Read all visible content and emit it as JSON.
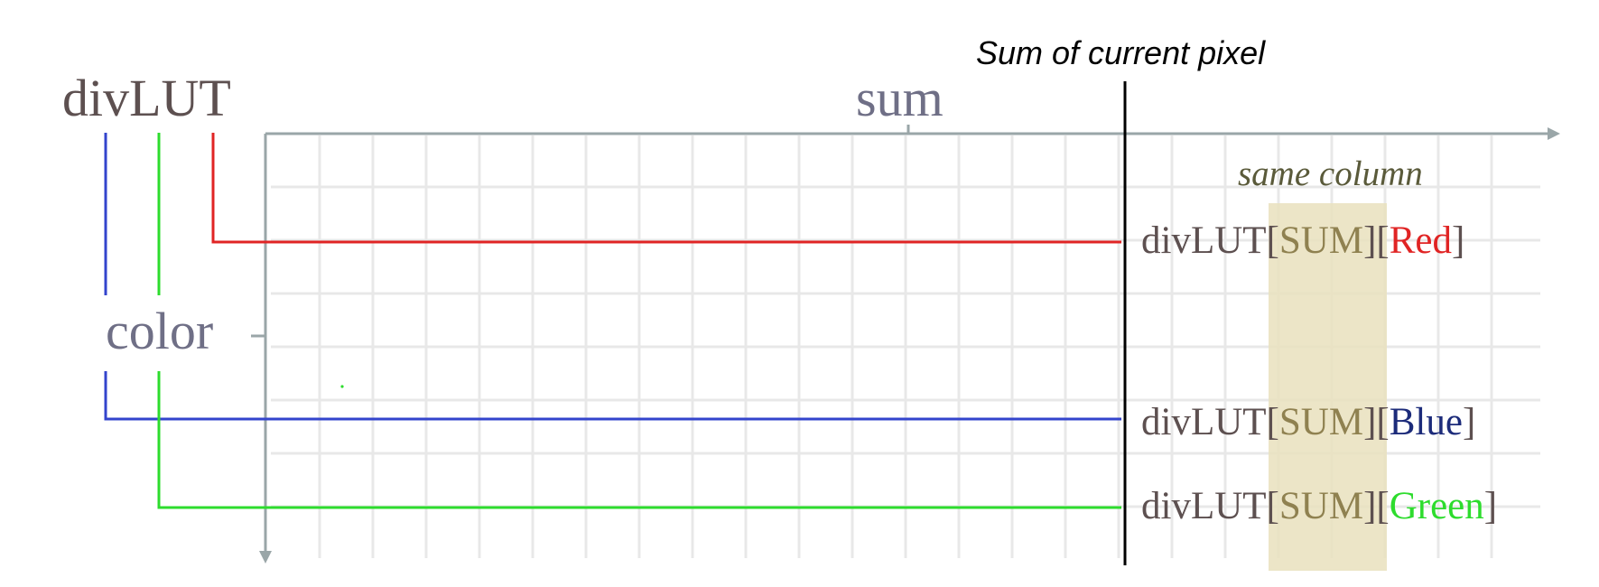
{
  "diagram": {
    "title": "divLUT",
    "x_axis_label": "sum",
    "y_axis_label": "color",
    "marker_label": "Sum of current pixel",
    "column_label": "same column",
    "lookups": [
      {
        "prefix": "divLUT",
        "open1": "[",
        "index1": "SUM",
        "mid": "][",
        "channel": "Red",
        "close": "]"
      },
      {
        "prefix": "divLUT",
        "open1": "[",
        "index1": "SUM",
        "mid": "][",
        "channel": "Blue",
        "close": "]"
      },
      {
        "prefix": "divLUT",
        "open1": "[",
        "index1": "SUM",
        "mid": "][",
        "channel": "Green",
        "close": "]"
      }
    ],
    "colors": {
      "title": "#5d5050",
      "axis_label": "#6f6f86",
      "axis": "#9aa6a8",
      "grid": "#e8e8e8",
      "sum_highlight": "#e9e1bd",
      "sum_text": "#8f8150",
      "red": "#e02424",
      "blue": "#3344cc",
      "blue_text": "#1c2b7a",
      "green": "#2ddc2d",
      "marker": "#000000"
    }
  }
}
